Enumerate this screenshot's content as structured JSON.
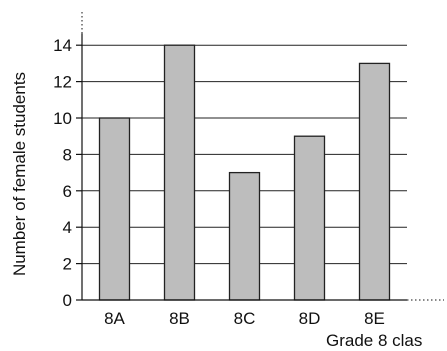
{
  "chart_data": {
    "type": "bar",
    "categories": [
      "8A",
      "8B",
      "8C",
      "8D",
      "8E"
    ],
    "values": [
      10,
      14,
      7,
      9,
      13
    ],
    "xlabel": "Grade 8 clas",
    "ylabel": "Number of female students",
    "yticks": [
      0,
      2,
      4,
      6,
      8,
      10,
      12,
      14
    ],
    "ylim": [
      0,
      16
    ],
    "grid": true,
    "bar_color": "#bdbdbd",
    "bar_stroke": "#222222"
  }
}
